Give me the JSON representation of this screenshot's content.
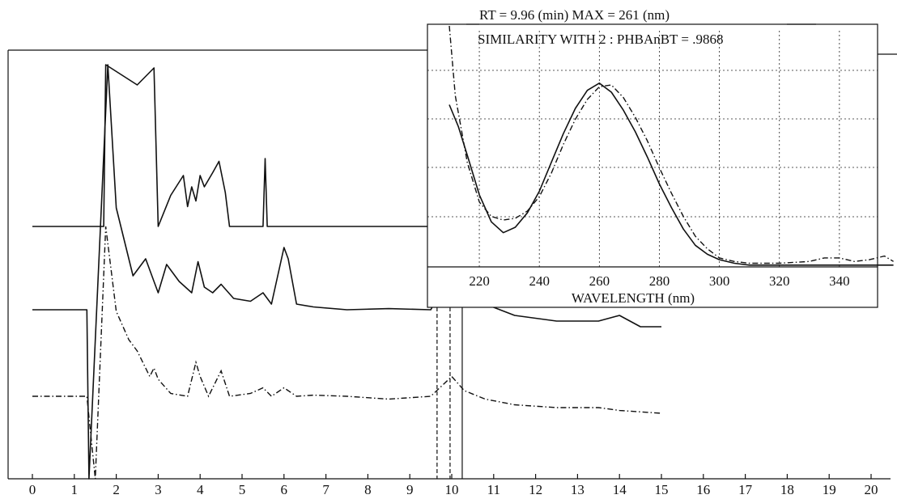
{
  "chart_data": [
    {
      "type": "line",
      "title": "",
      "xlabel": "",
      "ylabel": "",
      "xlim": [
        0,
        20
      ],
      "xticks": [
        "0",
        "1",
        "2",
        "3",
        "4",
        "5",
        "6",
        "7",
        "8",
        "9",
        "10",
        "11",
        "12",
        "13",
        "14",
        "15",
        "16",
        "17",
        "18",
        "19",
        "20"
      ],
      "series": [
        {
          "style": "solid",
          "x": [
            0,
            1.7,
            1.75,
            2.5,
            2.9,
            3.0,
            3.3,
            3.6,
            3.7,
            3.8,
            3.9,
            4.0,
            4.1,
            4.3,
            4.45,
            4.6,
            4.7,
            5.5,
            5.55,
            5.6,
            5.7,
            6.1,
            6.2,
            15
          ],
          "y": [
            0,
            0,
            3.5,
            2.5,
            2.8,
            0,
            0.55,
            0.9,
            0.35,
            0.7,
            0.45,
            0.9,
            0.7,
            0.95,
            1.15,
            0.6,
            0,
            0,
            1.2,
            0,
            0,
            0,
            0,
            0
          ]
        },
        {
          "style": "solid",
          "x": [
            0,
            1.3,
            1.35,
            1.8,
            2.0,
            2.4,
            2.7,
            2.9,
            3.0,
            3.2,
            3.5,
            3.8,
            3.95,
            4.1,
            4.3,
            4.5,
            4.8,
            5.2,
            5.5,
            5.7,
            6.0,
            6.1,
            6.3,
            6.7,
            7.5,
            8.5,
            9.5,
            10.0,
            10.3,
            10.8,
            11.5,
            12.5,
            13.5,
            14.0,
            14.5,
            15
          ],
          "y": [
            0,
            0,
            -3,
            4.5,
            1.8,
            0.6,
            0.9,
            0.5,
            0.3,
            0.8,
            0.5,
            0.3,
            0.85,
            0.4,
            0.3,
            0.45,
            0.2,
            0.15,
            0.3,
            0.1,
            1.1,
            0.9,
            0.1,
            0.05,
            0.0,
            0.02,
            0.0,
            0.7,
            0.3,
            0.1,
            -0.1,
            -0.2,
            -0.2,
            -0.1,
            -0.3,
            -0.3
          ]
        },
        {
          "style": "dash-dot",
          "x": [
            0,
            1.3,
            1.5,
            1.75,
            2.0,
            2.3,
            2.5,
            2.8,
            2.9,
            3.0,
            3.3,
            3.7,
            3.9,
            4.0,
            4.2,
            4.5,
            4.7,
            5.2,
            5.5,
            5.7,
            6.0,
            6.3,
            6.7,
            7.5,
            8.5,
            9.5,
            10.0,
            10.3,
            10.8,
            11.5,
            12.5,
            13.5,
            14.0,
            15
          ],
          "y": [
            0,
            0,
            -4,
            3,
            1.5,
            1.0,
            0.8,
            0.35,
            0.5,
            0.3,
            0.05,
            0.0,
            0.6,
            0.35,
            0.0,
            0.45,
            0.0,
            0.05,
            0.15,
            0.0,
            0.15,
            0.0,
            0.02,
            0.0,
            -0.05,
            0.0,
            0.35,
            0.1,
            -0.05,
            -0.15,
            -0.2,
            -0.2,
            -0.25,
            -0.3
          ]
        }
      ],
      "retention_markers": [
        {
          "x": 9.65,
          "style": "dash"
        },
        {
          "x": 9.96,
          "style": "dash"
        },
        {
          "x": 10.25,
          "style": "solid"
        }
      ]
    },
    {
      "type": "line",
      "title": "",
      "header_line_1": "RT = 9.96 (min) MAX = 261 (nm)",
      "header_line_2": "SIMILARITY WITH 2 : PHBAnBT = .9868",
      "xlabel": "WAVELENGTH (nm)",
      "ylabel": "",
      "xlim": [
        210,
        360
      ],
      "xticks": [
        "220",
        "240",
        "260",
        "280",
        "300",
        "320",
        "340"
      ],
      "ylim": [
        0,
        1.1
      ],
      "grid": true,
      "series": [
        {
          "style": "solid",
          "x": [
            210,
            213,
            216,
            220,
            224,
            228,
            232,
            236,
            240,
            244,
            248,
            252,
            256,
            260,
            264,
            268,
            272,
            276,
            280,
            284,
            288,
            292,
            296,
            300,
            305,
            310,
            320,
            330,
            340,
            350,
            358
          ],
          "y": [
            0.9,
            0.78,
            0.62,
            0.4,
            0.25,
            0.19,
            0.22,
            0.3,
            0.42,
            0.58,
            0.74,
            0.88,
            0.98,
            1.02,
            0.97,
            0.87,
            0.75,
            0.61,
            0.46,
            0.33,
            0.21,
            0.12,
            0.07,
            0.04,
            0.02,
            0.01,
            0.01,
            0.01,
            0.01,
            0.01,
            0.01
          ]
        },
        {
          "style": "dash-dot",
          "x": [
            210,
            212,
            216,
            220,
            224,
            228,
            232,
            236,
            240,
            244,
            248,
            252,
            256,
            260,
            264,
            268,
            272,
            276,
            280,
            284,
            288,
            292,
            296,
            300,
            305,
            310,
            320,
            330,
            335,
            340,
            345,
            350,
            355,
            358
          ],
          "y": [
            1.35,
            0.95,
            0.58,
            0.36,
            0.28,
            0.26,
            0.27,
            0.31,
            0.39,
            0.52,
            0.68,
            0.82,
            0.93,
            1.0,
            1.01,
            0.94,
            0.83,
            0.7,
            0.55,
            0.41,
            0.28,
            0.17,
            0.1,
            0.05,
            0.03,
            0.02,
            0.02,
            0.03,
            0.05,
            0.05,
            0.03,
            0.04,
            0.06,
            0.03
          ]
        }
      ]
    }
  ]
}
